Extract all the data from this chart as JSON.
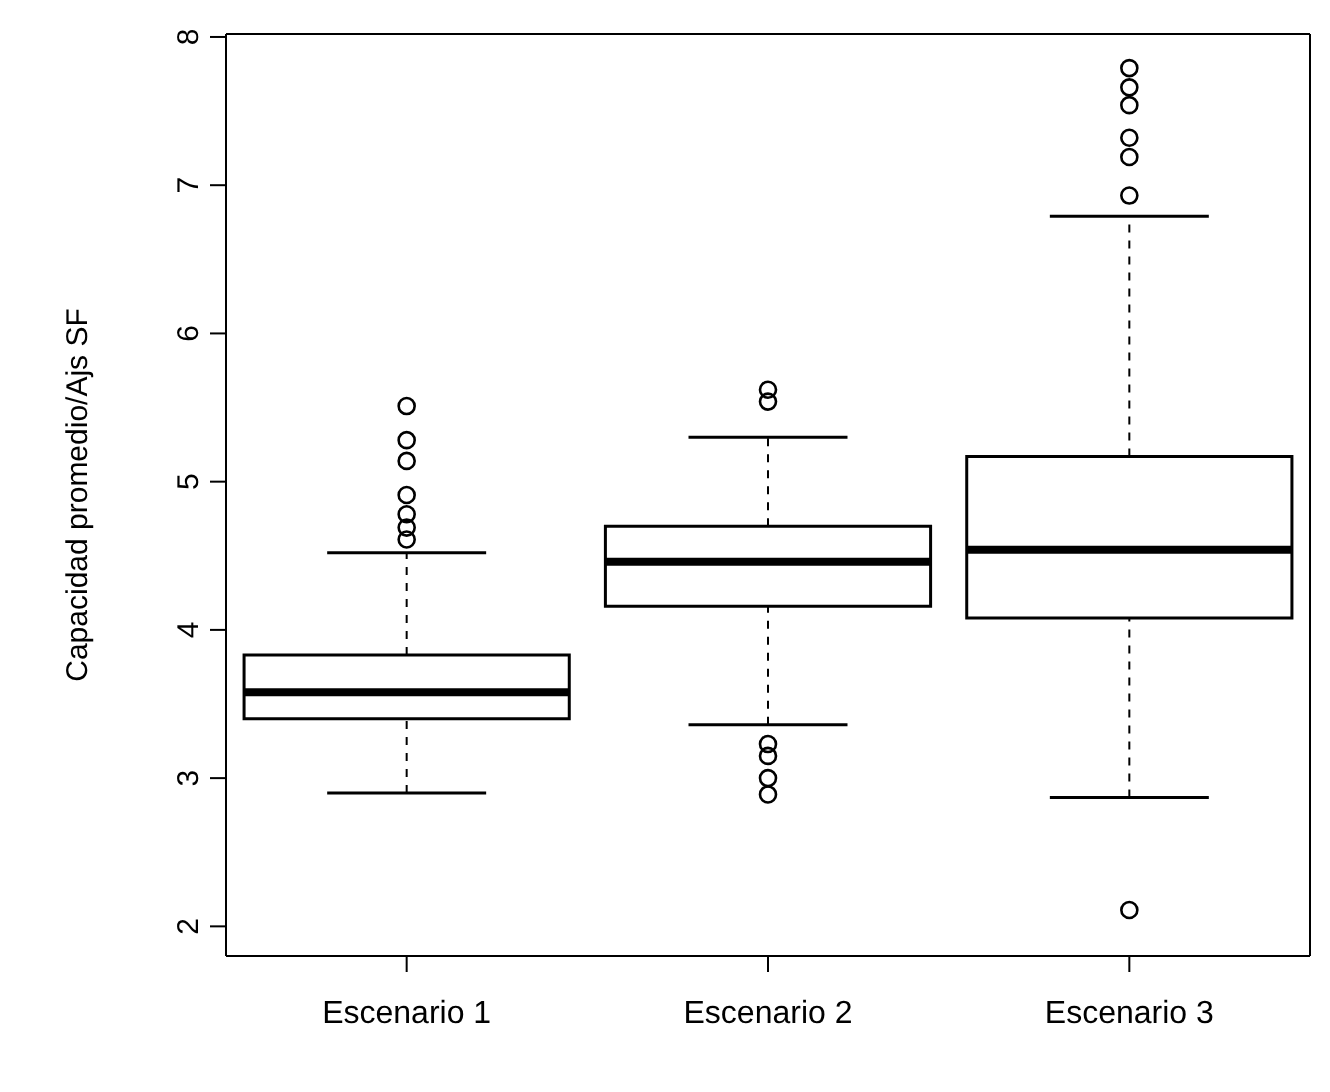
{
  "chart_data": {
    "type": "box",
    "ylabel": "Capacidad promedio/Ajs SF",
    "categories": [
      "Escenario 1",
      "Escenario 2",
      "Escenario 3"
    ],
    "boxes": [
      {
        "low": 2.9,
        "q1": 3.4,
        "median": 3.58,
        "q3": 3.83,
        "high": 4.52,
        "outliers": [
          5.51,
          5.28,
          5.14,
          4.91,
          4.78,
          4.69,
          4.61
        ]
      },
      {
        "low": 3.36,
        "q1": 4.16,
        "median": 4.46,
        "q3": 4.7,
        "high": 5.3,
        "outliers": [
          5.62,
          5.54,
          3.23,
          3.15,
          3.0,
          2.89
        ]
      },
      {
        "low": 2.87,
        "q1": 4.08,
        "median": 4.54,
        "q3": 5.17,
        "high": 6.79,
        "outliers": [
          7.79,
          7.66,
          7.54,
          7.32,
          7.19,
          6.93,
          2.11
        ]
      }
    ],
    "ylim": [
      1.8,
      8.02
    ],
    "yticks": [
      2,
      3,
      4,
      5,
      6,
      7,
      8
    ],
    "grid": false
  }
}
